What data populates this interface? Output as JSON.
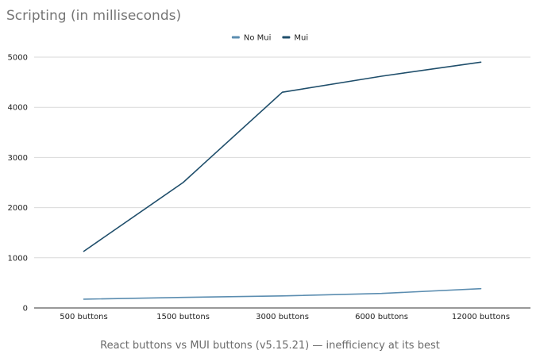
{
  "chart_data": {
    "type": "line",
    "title": "Scripting (in milliseconds)",
    "xlabel": "",
    "ylabel": "",
    "categories": [
      "500 buttons",
      "1500 buttons",
      "3000 buttons",
      "6000 buttons",
      "12000 buttons"
    ],
    "ylim": [
      0,
      5000
    ],
    "yticks": [
      0,
      1000,
      2000,
      3000,
      4000,
      5000
    ],
    "grid": true,
    "legend_position": "top",
    "series": [
      {
        "name": "No Mui",
        "color": "#5b8db0",
        "values": [
          175,
          210,
          240,
          290,
          385
        ]
      },
      {
        "name": "Mui",
        "color": "#1f4e6b",
        "values": [
          1130,
          2500,
          4300,
          4620,
          4900
        ]
      }
    ]
  },
  "caption": "React buttons vs MUI buttons (v5.15.21) — inefficiency at its best"
}
